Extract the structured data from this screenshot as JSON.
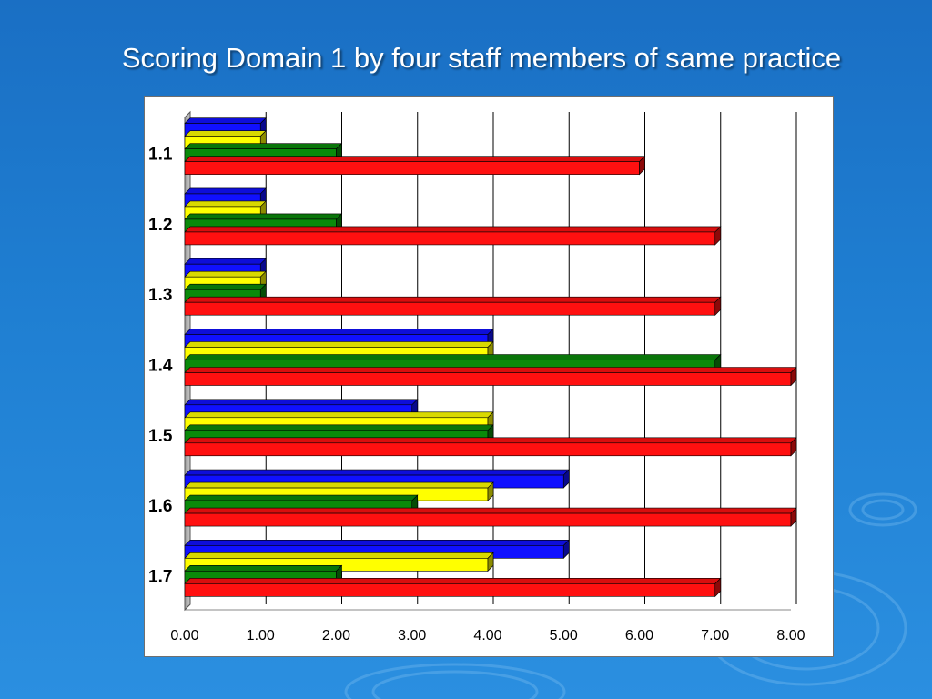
{
  "slide": {
    "title": "Scoring Domain 1 by four staff members of same practice"
  },
  "chart_data": {
    "type": "bar",
    "orientation": "horizontal",
    "categories": [
      "1.1",
      "1.2",
      "1.3",
      "1.4",
      "1.5",
      "1.6",
      "1.7"
    ],
    "series": [
      {
        "color": "#1010ff",
        "values": [
          1,
          1,
          1,
          4,
          3,
          5,
          5
        ]
      },
      {
        "color": "#ffff00",
        "values": [
          1,
          1,
          1,
          4,
          4,
          4,
          4
        ]
      },
      {
        "color": "#0a8a0a",
        "values": [
          2,
          2,
          1,
          7,
          4,
          3,
          2
        ]
      },
      {
        "color": "#ff1010",
        "values": [
          6,
          7,
          7,
          8,
          8,
          8,
          7
        ]
      }
    ],
    "xticks": [
      "0.00",
      "1.00",
      "2.00",
      "3.00",
      "4.00",
      "5.00",
      "6.00",
      "7.00",
      "8.00"
    ],
    "xlim": [
      0,
      8
    ],
    "grid": true,
    "legend": "none"
  }
}
